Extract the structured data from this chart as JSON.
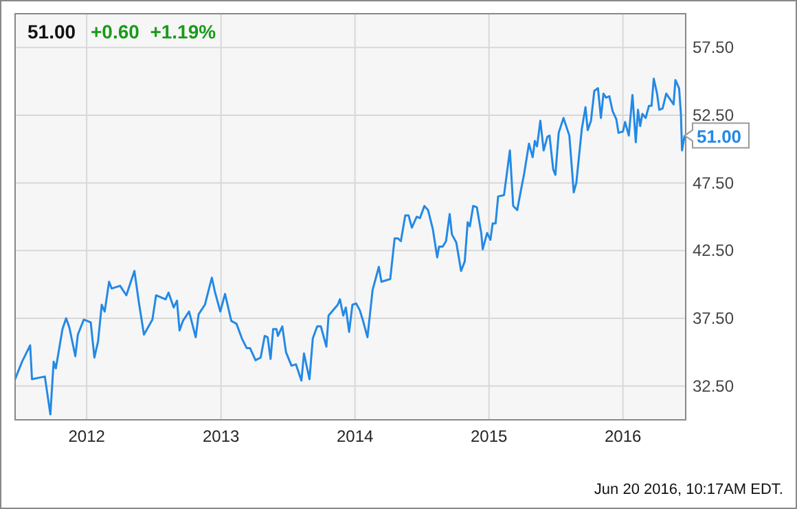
{
  "chart_data": {
    "type": "line",
    "title": "51.00",
    "subtitle": "+0.60  +1.19%",
    "x": [
      "2011-06-20",
      "2011-07-09",
      "2011-07-31",
      "2011-08-05",
      "2011-09-09",
      "2011-09-24",
      "2011-10-03",
      "2011-10-09",
      "2011-10-27",
      "2011-11-06",
      "2011-11-15",
      "2011-12-01",
      "2011-12-08",
      "2011-12-24",
      "2012-01-12",
      "2012-01-22",
      "2012-02-01",
      "2012-02-11",
      "2012-02-19",
      "2012-03-02",
      "2012-03-09",
      "2012-04-01",
      "2012-04-18",
      "2012-05-10",
      "2012-05-22",
      "2012-06-05",
      "2012-06-28",
      "2012-07-08",
      "2012-08-03",
      "2012-08-11",
      "2012-08-25",
      "2012-09-03",
      "2012-09-10",
      "2012-09-19",
      "2012-10-06",
      "2012-10-24",
      "2012-11-01",
      "2012-11-18",
      "2012-12-07",
      "2012-12-15",
      "2012-12-30",
      "2013-01-12",
      "2013-01-29",
      "2013-02-12",
      "2013-02-27",
      "2013-03-12",
      "2013-03-21",
      "2013-04-05",
      "2013-04-19",
      "2013-04-30",
      "2013-05-08",
      "2013-05-16",
      "2013-05-23",
      "2013-06-01",
      "2013-06-05",
      "2013-06-17",
      "2013-06-27",
      "2013-07-12",
      "2013-07-24",
      "2013-08-08",
      "2013-08-15",
      "2013-08-30",
      "2013-09-08",
      "2013-09-20",
      "2013-09-30",
      "2013-10-15",
      "2013-10-21",
      "2013-11-15",
      "2013-11-21",
      "2013-11-30",
      "2013-12-07",
      "2013-12-16",
      "2013-12-25",
      "2014-01-04",
      "2014-01-14",
      "2014-01-22",
      "2014-02-04",
      "2014-02-18",
      "2014-03-07",
      "2014-03-14",
      "2014-04-07",
      "2014-04-19",
      "2014-04-28",
      "2014-05-06",
      "2014-05-18",
      "2014-05-27",
      "2014-06-05",
      "2014-06-18",
      "2014-06-27",
      "2014-07-09",
      "2014-07-19",
      "2014-08-01",
      "2014-08-13",
      "2014-08-18",
      "2014-08-28",
      "2014-09-06",
      "2014-09-16",
      "2014-09-22",
      "2014-10-04",
      "2014-10-17",
      "2014-10-27",
      "2014-11-04",
      "2014-11-10",
      "2014-11-19",
      "2014-11-29",
      "2014-12-11",
      "2014-12-15",
      "2014-12-27",
      "2015-01-05",
      "2015-01-11",
      "2015-01-19",
      "2015-01-26",
      "2015-02-11",
      "2015-02-27",
      "2015-03-08",
      "2015-03-19",
      "2015-03-28",
      "2015-04-07",
      "2015-04-20",
      "2015-04-30",
      "2015-05-06",
      "2015-05-12",
      "2015-05-21",
      "2015-05-30",
      "2015-06-09",
      "2015-06-15",
      "2015-06-25",
      "2015-07-01",
      "2015-07-10",
      "2015-07-23",
      "2015-08-08",
      "2015-08-20",
      "2015-08-27",
      "2015-09-11",
      "2015-09-21",
      "2015-09-27",
      "2015-10-06",
      "2015-10-15",
      "2015-10-25",
      "2015-11-02",
      "2015-11-09",
      "2015-11-16",
      "2015-11-25",
      "2015-12-04",
      "2015-12-14",
      "2015-12-20",
      "2016-01-01",
      "2016-01-07",
      "2016-01-17",
      "2016-01-27",
      "2016-02-05",
      "2016-02-11",
      "2016-02-17",
      "2016-02-23",
      "2016-03-03",
      "2016-03-12",
      "2016-03-19",
      "2016-03-25",
      "2016-04-03",
      "2016-04-09",
      "2016-04-18",
      "2016-04-28",
      "2016-05-08",
      "2016-05-18",
      "2016-05-23",
      "2016-06-02",
      "2016-06-07",
      "2016-06-10",
      "2016-06-17"
    ],
    "series": [
      {
        "color": "#2389e6",
        "values": [
          33.0,
          34.3,
          35.5,
          33.0,
          33.2,
          30.4,
          34.3,
          33.8,
          36.7,
          37.5,
          36.8,
          34.7,
          36.3,
          37.4,
          37.2,
          34.6,
          35.8,
          38.5,
          38.0,
          40.2,
          39.7,
          39.9,
          39.2,
          41.0,
          38.7,
          36.3,
          37.4,
          39.2,
          38.9,
          39.4,
          38.3,
          38.8,
          36.6,
          37.3,
          38.0,
          36.1,
          37.8,
          38.5,
          40.5,
          39.5,
          38.0,
          39.3,
          37.3,
          37.1,
          36.0,
          35.3,
          35.3,
          34.4,
          34.6,
          36.2,
          36.1,
          34.5,
          36.7,
          36.7,
          36.2,
          36.9,
          35.0,
          34.0,
          34.1,
          32.9,
          34.9,
          33.0,
          36.0,
          36.9,
          36.9,
          35.4,
          37.7,
          38.5,
          38.9,
          37.7,
          38.3,
          36.5,
          38.5,
          38.6,
          38.1,
          37.4,
          36.1,
          39.6,
          41.3,
          40.2,
          40.4,
          43.4,
          43.4,
          43.2,
          45.1,
          45.1,
          44.2,
          45.0,
          44.9,
          45.8,
          45.5,
          44.1,
          42.0,
          42.8,
          42.8,
          43.2,
          45.2,
          43.7,
          43.1,
          41.0,
          41.7,
          44.6,
          44.3,
          45.8,
          45.7,
          43.8,
          42.6,
          43.8,
          43.3,
          44.5,
          44.5,
          46.5,
          46.6,
          49.9,
          45.8,
          45.5,
          46.8,
          48.2,
          50.4,
          49.4,
          50.6,
          50.2,
          52.1,
          49.9,
          50.9,
          51.0,
          48.5,
          48.1,
          51.2,
          52.3,
          51.0,
          46.8,
          47.5,
          51.5,
          53.1,
          51.4,
          52.1,
          54.3,
          54.5,
          52.3,
          54.1,
          53.8,
          53.9,
          52.8,
          52.2,
          51.2,
          51.3,
          52.0,
          51.0,
          54.0,
          50.5,
          52.9,
          51.7,
          52.6,
          52.3,
          53.2,
          53.2,
          55.2,
          54.1,
          52.9,
          53.0,
          54.1,
          53.7,
          53.3,
          55.1,
          54.5,
          52.6,
          49.9,
          51.0
        ]
      }
    ],
    "xlim": [
      "2011-06-20",
      "2016-06-20"
    ],
    "ylim": [
      30,
      60
    ],
    "xticks": [
      {
        "value": "2012-01-01",
        "label": "2012"
      },
      {
        "value": "2013-01-01",
        "label": "2013"
      },
      {
        "value": "2014-01-01",
        "label": "2014"
      },
      {
        "value": "2015-01-01",
        "label": "2015"
      },
      {
        "value": "2016-01-01",
        "label": "2016"
      }
    ],
    "yticks": [
      {
        "value": 32.5,
        "label": "32.50"
      },
      {
        "value": 37.5,
        "label": "37.50"
      },
      {
        "value": 42.5,
        "label": "42.50"
      },
      {
        "value": 47.5,
        "label": "47.50"
      },
      {
        "value": 52.5,
        "label": "52.50"
      },
      {
        "value": 57.5,
        "label": "57.50"
      }
    ],
    "grid": true,
    "annotations": [
      {
        "text": "51.00",
        "x": "2016-06-17",
        "y": 51.0
      },
      "Jun 20 2016, 10:17AM EDT."
    ]
  }
}
